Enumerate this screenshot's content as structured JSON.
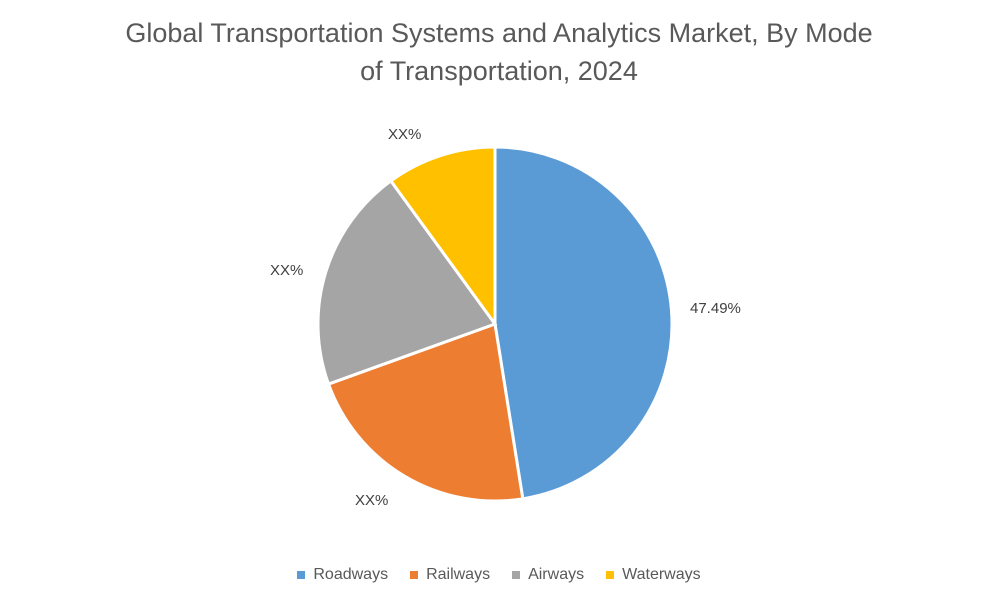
{
  "chart_data": {
    "type": "pie",
    "title": "Global Transportation Systems and Analytics Market, By Mode of Transportation, 2024",
    "title_lines": [
      "Global Transportation Systems and Analytics Market, By Mode",
      "of Transportation, 2024"
    ],
    "categories": [
      "Roadways",
      "Railways",
      "Airways",
      "Waterways"
    ],
    "values": [
      47.49,
      22.0,
      20.5,
      10.01
    ],
    "data_labels": [
      "47.49%",
      "XX%",
      "XX%",
      "XX%"
    ],
    "colors": [
      "#5B9BD5",
      "#ED7D31",
      "#A5A5A5",
      "#FFC000"
    ],
    "start_angle_deg": 0,
    "direction": "clockwise",
    "legend_position": "bottom"
  }
}
